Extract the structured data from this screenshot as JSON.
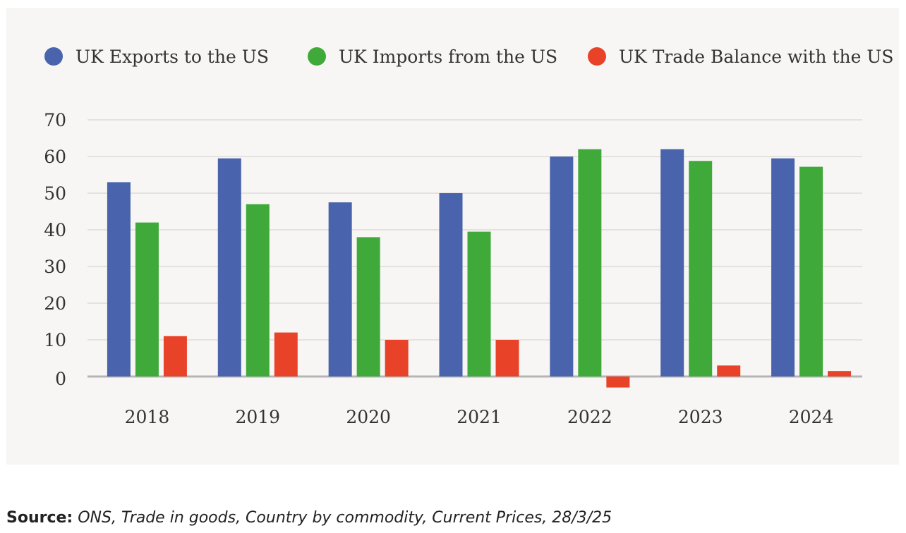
{
  "chart_data": {
    "type": "bar",
    "title": "",
    "xlabel": "",
    "ylabel": "",
    "categories": [
      "2018",
      "2019",
      "2020",
      "2021",
      "2022",
      "2023",
      "2024"
    ],
    "series": [
      {
        "name": "UK Exports to the US",
        "color": "#4963ac",
        "values": [
          53,
          59.5,
          47.5,
          50,
          60,
          62,
          59.5
        ]
      },
      {
        "name": "UK Imports from the US",
        "color": "#3faa3a",
        "values": [
          42,
          47,
          38,
          39.5,
          62,
          58.8,
          57.2
        ]
      },
      {
        "name": "UK Trade Balance with the US",
        "color": "#e84328",
        "values": [
          11,
          12,
          10,
          10,
          -3,
          3,
          1.5
        ]
      }
    ],
    "ylim": [
      -3,
      70
    ],
    "yticks": [
      0,
      10,
      20,
      30,
      40,
      50,
      60,
      70
    ],
    "grid": true,
    "legend": "top"
  },
  "source": {
    "label": "Source:",
    "text": "ONS, Trade in goods, Country by commodity, Current Prices, 28/3/25"
  }
}
